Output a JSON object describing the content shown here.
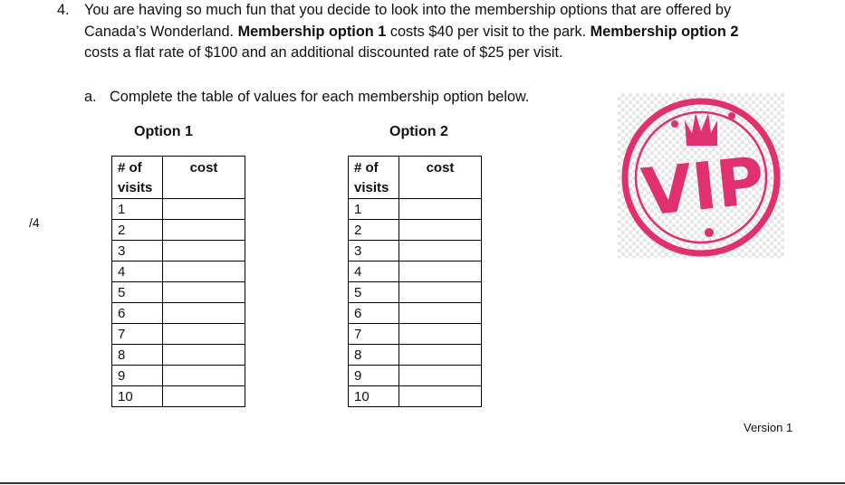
{
  "question": {
    "number": "4.",
    "line1": "You are having so much fun that you decide to look into the membership options that are offered by",
    "line2_a": "Canada’s Wonderland. ",
    "line2_b": "Membership option 1",
    "line2_c": " costs $40 per visit to the park. ",
    "line2_d": "Membership option 2",
    "line3": "costs a flat rate of $100 and an additional discounted rate of $25 per visit."
  },
  "part_a": {
    "label": "a.",
    "text": "Complete the table of values for each membership option below."
  },
  "marks": "/4",
  "option1": {
    "title": "Option 1",
    "col1": [
      "# of",
      "visits"
    ],
    "col2": "cost",
    "visits": [
      "1",
      "2",
      "3",
      "4",
      "5",
      "6",
      "7",
      "8",
      "9",
      "10"
    ]
  },
  "option2": {
    "title": "Option 2",
    "col1": [
      "# of",
      "visits"
    ],
    "col2": "cost",
    "visits": [
      "1",
      "2",
      "3",
      "4",
      "5",
      "6",
      "7",
      "8",
      "9",
      "10"
    ]
  },
  "vip_image": {
    "text": "VIP",
    "color": "#e0306f"
  },
  "footer": {
    "version": "Version 1"
  }
}
